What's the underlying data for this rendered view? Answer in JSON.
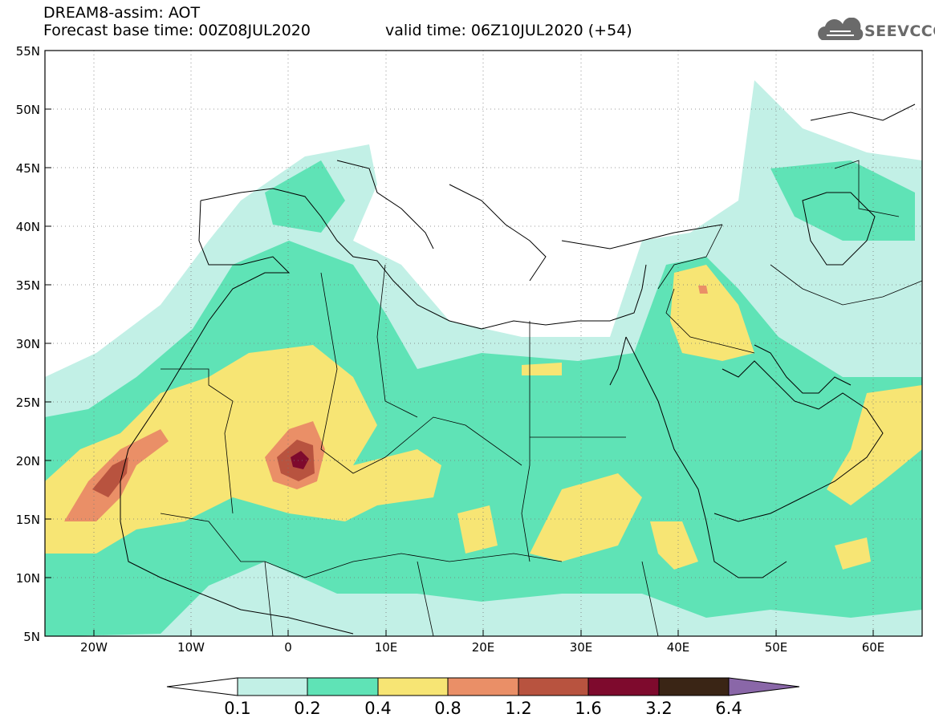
{
  "header": {
    "title": "DREAM8-assim: AOT",
    "base_time": "Forecast base time: 00Z08JUL2020",
    "valid_time": "valid time: 06Z10JUL2020 (+54)"
  },
  "logo": {
    "text": "SEEVCCC",
    "icon": "cloud-icon"
  },
  "map": {
    "lon_range": [
      -25,
      65
    ],
    "lat_range": [
      5,
      55
    ],
    "lat_labels": [
      "55N",
      "50N",
      "45N",
      "40N",
      "35N",
      "30N",
      "25N",
      "20N",
      "15N",
      "10N",
      "5N"
    ],
    "lon_labels": [
      "20W",
      "10W",
      "0",
      "10E",
      "20E",
      "30E",
      "40E",
      "50E",
      "60E"
    ],
    "grid": "dotted"
  },
  "colorbar": {
    "levels": [
      "0.1",
      "0.2",
      "0.4",
      "0.8",
      "1.2",
      "1.6",
      "3.2",
      "6.4"
    ],
    "colors": [
      "#ffffff",
      "#c2f0e6",
      "#5fe3b6",
      "#f7e574",
      "#ea8f67",
      "#b8533f",
      "#7e0a2d",
      "#3a2515",
      "#8a67a8"
    ]
  }
}
